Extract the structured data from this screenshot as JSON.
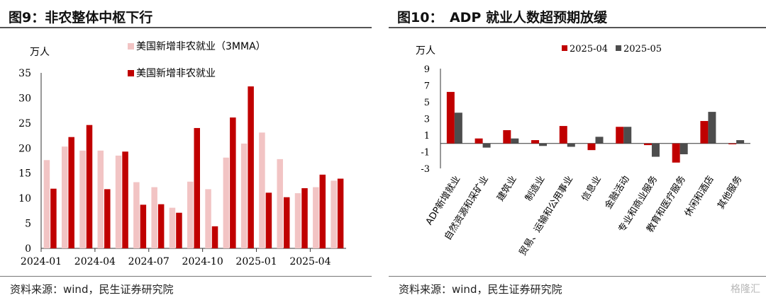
{
  "left": {
    "title": "图9：非农整体中枢下行",
    "source": "资料来源：wind，民生证券研究院",
    "chart_data": {
      "type": "bar",
      "unit_label": "万人",
      "ylim": [
        0,
        35
      ],
      "yticks": [
        "0",
        "5",
        "10",
        "15",
        "20",
        "25",
        "30",
        "35"
      ],
      "xtick_labels": [
        "2024-01",
        "2024-04",
        "2024-07",
        "2024-10",
        "2025-01",
        "2025-04"
      ],
      "series": [
        {
          "name": "美国新增非农就业（3MMA）",
          "color": "#f2c4c4",
          "values": [
            17.6,
            20.3,
            19.5,
            19.5,
            18.5,
            13.2,
            12.2,
            8.1,
            13.3,
            11.8,
            18.1,
            20.9,
            23.1,
            17.8,
            11.0,
            12.2,
            13.5
          ]
        },
        {
          "name": "美国新增非农就业",
          "color": "#c00000",
          "values": [
            11.9,
            22.2,
            24.6,
            11.8,
            19.3,
            8.7,
            8.8,
            7.1,
            24.0,
            4.4,
            26.1,
            32.3,
            11.1,
            10.2,
            12.0,
            14.7,
            13.9
          ]
        }
      ]
    }
  },
  "right": {
    "title": "图10：　ADP 就业人数超预期放缓",
    "source": "资料来源：wind，民生证券研究院",
    "chart_data": {
      "type": "bar",
      "unit_label": "万人",
      "ylim": [
        -3,
        9
      ],
      "yticks": [
        "-3",
        "-1",
        "1",
        "3",
        "5",
        "7",
        "9"
      ],
      "categories": [
        "ADP新增就业",
        "自然资源和采矿业",
        "建筑业",
        "制造业",
        "贸易、运输和公用事业",
        "信息业",
        "金融活动",
        "专业和商业服务",
        "教育和医疗服务",
        "休闲和酒店",
        "其他服务"
      ],
      "series": [
        {
          "name": "2025-04",
          "color": "#c00000",
          "values": [
            6.2,
            0.6,
            1.6,
            0.4,
            2.1,
            -0.8,
            2.0,
            -0.2,
            -2.3,
            2.7,
            -0.1
          ]
        },
        {
          "name": "2025-05",
          "color": "#4d4d4d",
          "values": [
            3.7,
            -0.5,
            0.6,
            -0.3,
            -0.4,
            0.8,
            2.0,
            -1.6,
            -1.3,
            3.8,
            0.4
          ]
        }
      ]
    }
  },
  "watermark": "格隆汇"
}
